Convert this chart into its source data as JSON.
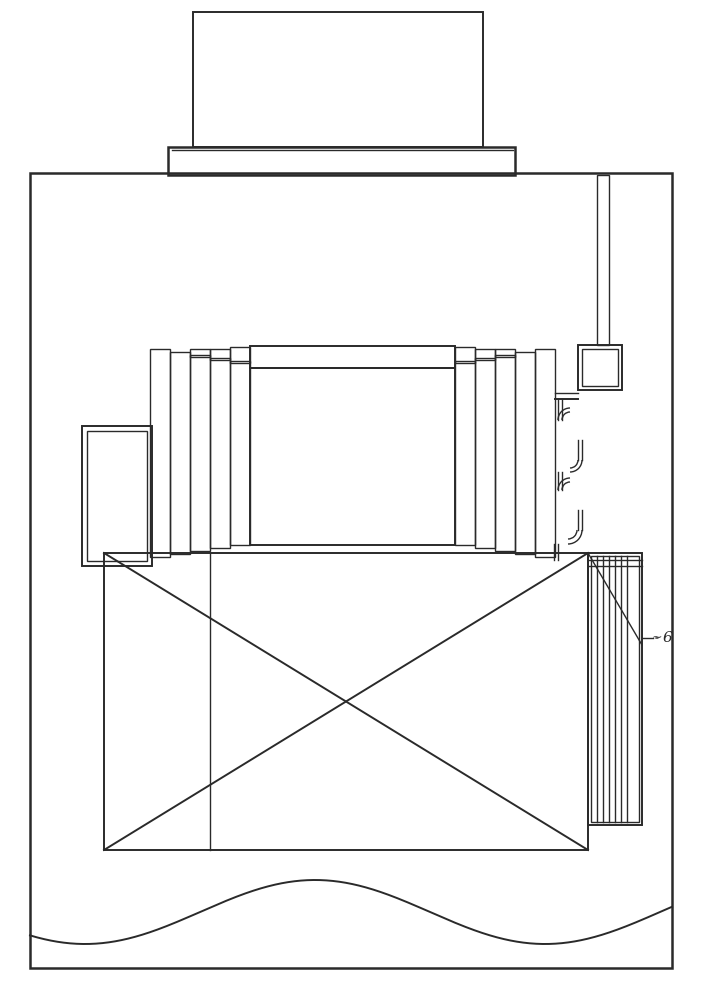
{
  "bg_color": "#ffffff",
  "line_color": "#2a2a2a",
  "lw_thin": 1.0,
  "lw_med": 1.4,
  "lw_thick": 1.8
}
